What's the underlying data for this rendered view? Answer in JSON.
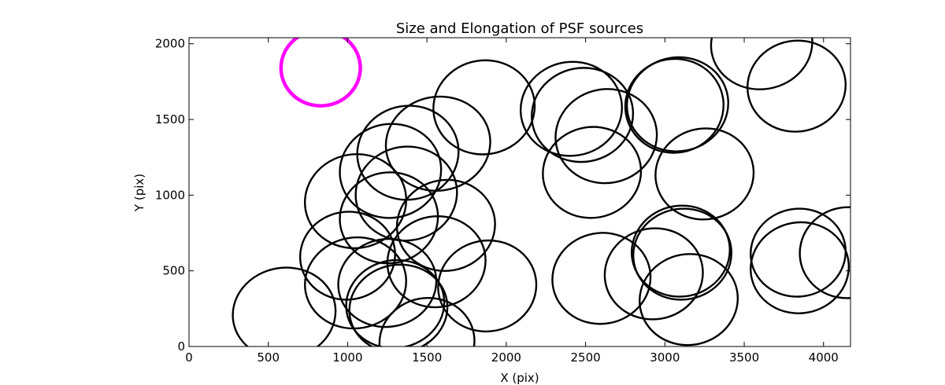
{
  "chart_data": {
    "type": "scatter",
    "title": "Size and Elongation of PSF sources",
    "xlabel": "X (pix)",
    "ylabel": "Y (pix)",
    "xlim": [
      0,
      4170
    ],
    "ylim": [
      0,
      2040
    ],
    "xticks": [
      0,
      500,
      1000,
      1500,
      2000,
      2500,
      3000,
      3500,
      4000
    ],
    "yticks": [
      0,
      500,
      1000,
      1500,
      2000
    ],
    "grid": false,
    "reference_marker": {
      "x": 830,
      "y": 1840,
      "rx": 250,
      "ry": 250,
      "angle": 0,
      "color": "#ff00ff"
    },
    "sources": [
      {
        "x": 600,
        "y": 220,
        "rx": 325,
        "ry": 300,
        "angle": 10
      },
      {
        "x": 1000,
        "y": 600,
        "rx": 300,
        "ry": 290,
        "angle": 10
      },
      {
        "x": 1050,
        "y": 420,
        "rx": 320,
        "ry": 300,
        "angle": 10
      },
      {
        "x": 1050,
        "y": 960,
        "rx": 320,
        "ry": 310,
        "angle": 10
      },
      {
        "x": 1270,
        "y": 1160,
        "rx": 320,
        "ry": 310,
        "angle": 10
      },
      {
        "x": 1380,
        "y": 1280,
        "rx": 320,
        "ry": 310,
        "angle": 10
      },
      {
        "x": 1370,
        "y": 1010,
        "rx": 320,
        "ry": 310,
        "angle": 10
      },
      {
        "x": 1570,
        "y": 1340,
        "rx": 330,
        "ry": 310,
        "angle": 10
      },
      {
        "x": 1860,
        "y": 1580,
        "rx": 320,
        "ry": 310,
        "angle": 10
      },
      {
        "x": 1620,
        "y": 800,
        "rx": 310,
        "ry": 300,
        "angle": 10
      },
      {
        "x": 1560,
        "y": 560,
        "rx": 310,
        "ry": 300,
        "angle": 10
      },
      {
        "x": 1880,
        "y": 400,
        "rx": 310,
        "ry": 300,
        "angle": 10
      },
      {
        "x": 1250,
        "y": 420,
        "rx": 310,
        "ry": 290,
        "angle": 10
      },
      {
        "x": 1300,
        "y": 280,
        "rx": 310,
        "ry": 290,
        "angle": 10
      },
      {
        "x": 1320,
        "y": 250,
        "rx": 310,
        "ry": 290,
        "angle": 10
      },
      {
        "x": 1500,
        "y": 30,
        "rx": 300,
        "ry": 290,
        "angle": 10
      },
      {
        "x": 1260,
        "y": 850,
        "rx": 310,
        "ry": 300,
        "angle": 10
      },
      {
        "x": 2410,
        "y": 1570,
        "rx": 320,
        "ry": 310,
        "angle": 10
      },
      {
        "x": 2480,
        "y": 1530,
        "rx": 320,
        "ry": 310,
        "angle": 10
      },
      {
        "x": 2630,
        "y": 1390,
        "rx": 320,
        "ry": 310,
        "angle": 10
      },
      {
        "x": 2540,
        "y": 1150,
        "rx": 310,
        "ry": 300,
        "angle": 10
      },
      {
        "x": 3080,
        "y": 1600,
        "rx": 320,
        "ry": 310,
        "angle": 10
      },
      {
        "x": 3060,
        "y": 1590,
        "rx": 310,
        "ry": 310,
        "angle": 10
      },
      {
        "x": 3250,
        "y": 1140,
        "rx": 310,
        "ry": 300,
        "angle": 10
      },
      {
        "x": 3610,
        "y": 2000,
        "rx": 320,
        "ry": 300,
        "angle": 10
      },
      {
        "x": 3830,
        "y": 1720,
        "rx": 310,
        "ry": 300,
        "angle": 10
      },
      {
        "x": 2600,
        "y": 450,
        "rx": 310,
        "ry": 300,
        "angle": 10
      },
      {
        "x": 2930,
        "y": 480,
        "rx": 310,
        "ry": 300,
        "angle": 10
      },
      {
        "x": 3100,
        "y": 630,
        "rx": 310,
        "ry": 300,
        "angle": 10
      },
      {
        "x": 3110,
        "y": 610,
        "rx": 310,
        "ry": 300,
        "angle": 10
      },
      {
        "x": 3150,
        "y": 310,
        "rx": 310,
        "ry": 300,
        "angle": 10
      },
      {
        "x": 3840,
        "y": 620,
        "rx": 300,
        "ry": 290,
        "angle": 10
      },
      {
        "x": 3850,
        "y": 520,
        "rx": 310,
        "ry": 300,
        "angle": 10
      },
      {
        "x": 4150,
        "y": 620,
        "rx": 300,
        "ry": 300,
        "angle": 10
      }
    ]
  }
}
